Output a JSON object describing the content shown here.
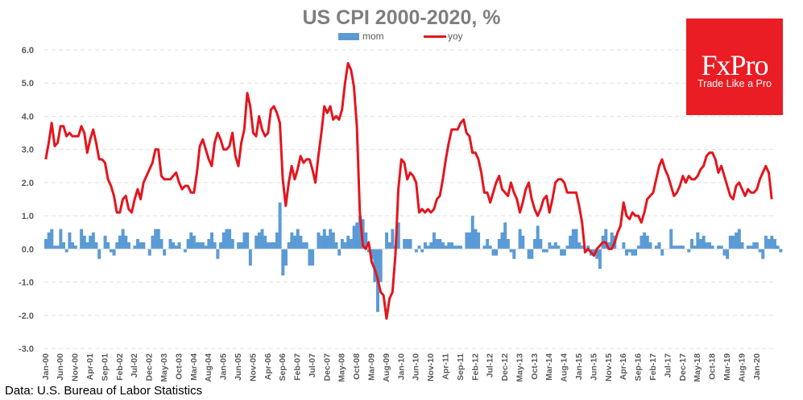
{
  "chart_data": {
    "type": "bar+line",
    "title": "US CPI 2000-2020, %",
    "xlabel": "",
    "ylabel": "",
    "ylim": [
      -3.0,
      6.0
    ],
    "yticks": [
      "6.0",
      "5.0",
      "4.0",
      "3.0",
      "2.0",
      "1.0",
      "0.0",
      "-1.0",
      "-2.0",
      "-3.0"
    ],
    "ytick_values": [
      6,
      5,
      4,
      3,
      2,
      1,
      0,
      -1,
      -2,
      -3
    ],
    "grid": true,
    "legend": "top-center",
    "start": "Jan-00",
    "end": "Mar-20",
    "xtick_every_months": 5,
    "xticks": [
      "Jan-00",
      "Jun-00",
      "Nov-00",
      "Apr-01",
      "Sep-01",
      "Feb-02",
      "Jul-02",
      "Dec-02",
      "May-03",
      "Oct-03",
      "Mar-04",
      "Aug-04",
      "Jan-05",
      "Jun-05",
      "Nov-05",
      "Apr-06",
      "Sep-06",
      "Feb-07",
      "Jul-07",
      "Dec-07",
      "May-08",
      "Oct-08",
      "Mar-09",
      "Aug-09",
      "Jan-10",
      "Jun-10",
      "Nov-10",
      "Apr-11",
      "Sep-11",
      "Feb-12",
      "Jul-12",
      "Dec-12",
      "May-13",
      "Oct-13",
      "Mar-14",
      "Aug-14",
      "Jan-15",
      "Jun-15",
      "Nov-15",
      "Apr-16",
      "Sep-16",
      "Feb-17",
      "Jul-17",
      "Dec-17",
      "May-18",
      "Oct-18",
      "Mar-19",
      "Aug-19",
      "Jan-20"
    ],
    "series": [
      {
        "name": "mom",
        "type": "bar",
        "color": "#5b9bd5",
        "values": [
          0.3,
          0.5,
          0.6,
          0.1,
          0.1,
          0.6,
          0.2,
          -0.1,
          0.5,
          0.2,
          0.1,
          0.0,
          0.6,
          0.4,
          0.2,
          0.4,
          0.5,
          0.2,
          -0.3,
          0.0,
          0.4,
          0.2,
          -0.1,
          -0.2,
          0.2,
          0.4,
          0.6,
          0.4,
          0.2,
          0.0,
          0.1,
          0.3,
          0.2,
          0.2,
          0.0,
          -0.2,
          0.4,
          0.6,
          0.6,
          0.3,
          -0.2,
          0.0,
          0.3,
          0.2,
          0.1,
          0.2,
          0.0,
          -0.1,
          0.3,
          0.5,
          0.4,
          0.2,
          0.2,
          0.2,
          0.1,
          0.3,
          0.5,
          0.2,
          -0.3,
          0.2,
          0.5,
          0.6,
          0.6,
          0.3,
          0.0,
          0.2,
          0.2,
          0.5,
          0.5,
          -0.5,
          0.0,
          0.4,
          0.5,
          0.6,
          0.4,
          0.2,
          0.2,
          0.2,
          0.5,
          1.4,
          -0.8,
          -0.5,
          0.2,
          0.5,
          0.4,
          0.6,
          0.4,
          0.2,
          0.2,
          -0.5,
          -0.5,
          0.0,
          0.5,
          0.4,
          0.6,
          0.4,
          0.6,
          0.5,
          0.2,
          -0.2,
          0.3,
          0.2,
          0.4,
          0.3,
          0.7,
          0.8,
          1.0,
          0.9,
          0.5,
          -0.1,
          -0.3,
          -1.0,
          -1.9,
          -1.0,
          0.0,
          0.5,
          0.2,
          0.6,
          0.1,
          0.8,
          0.0,
          0.3,
          0.3,
          0.3,
          0.0,
          -0.1,
          0.1,
          -0.1,
          0.2,
          0.1,
          0.2,
          0.5,
          0.3,
          0.3,
          0.2,
          0.1,
          0.2,
          0.2,
          0.1,
          0.1,
          0.1,
          0.0,
          0.5,
          0.5,
          1.0,
          0.6,
          0.5,
          0.0,
          0.1,
          0.3,
          0.1,
          -0.2,
          -0.2,
          0.3,
          0.5,
          0.8,
          0.3,
          -0.1,
          -0.3,
          0.0,
          0.6,
          0.4,
          0.0,
          -0.3,
          -0.3,
          0.3,
          0.7,
          0.3,
          -0.1,
          -0.1,
          0.2,
          0.1,
          0.2,
          0.1,
          -0.2,
          -0.2,
          0.1,
          0.4,
          0.6,
          0.6,
          0.2,
          0.1,
          0.0,
          0.1,
          -0.2,
          -0.2,
          -0.3,
          -0.6,
          0.4,
          0.6,
          0.2,
          0.5,
          0.4,
          0.0,
          0.0,
          0.2,
          -0.2,
          -0.1,
          -0.2,
          -0.2,
          0.1,
          0.4,
          0.5,
          0.4,
          0.2,
          0.0,
          0.1,
          0.2,
          -0.2,
          0.0,
          0.0,
          0.6,
          0.1,
          0.1,
          0.1,
          0.1,
          0.0,
          -0.1,
          0.3,
          0.1,
          0.5,
          0.3,
          0.4,
          0.2,
          0.2,
          0.1,
          0.0,
          0.1,
          0.1,
          -0.2,
          -0.3,
          0.4,
          0.4,
          0.5,
          0.6,
          0.2,
          0.0,
          0.1,
          0.1,
          0.2,
          0.2,
          -0.1,
          -0.3,
          0.4,
          0.3,
          0.4,
          0.3,
          0.1,
          -0.1
        ]
      },
      {
        "name": "yoy",
        "type": "line",
        "color": "#e3161e",
        "values": [
          2.7,
          3.2,
          3.8,
          3.1,
          3.2,
          3.7,
          3.7,
          3.4,
          3.5,
          3.4,
          3.4,
          3.4,
          3.7,
          3.5,
          2.9,
          3.3,
          3.6,
          3.2,
          2.7,
          2.7,
          2.6,
          2.1,
          1.9,
          1.6,
          1.1,
          1.1,
          1.5,
          1.6,
          1.2,
          1.1,
          1.5,
          1.8,
          1.5,
          2.0,
          2.2,
          2.4,
          2.6,
          3.0,
          3.0,
          2.2,
          2.1,
          2.1,
          2.1,
          2.2,
          2.3,
          2.0,
          1.8,
          1.9,
          1.9,
          1.7,
          1.7,
          2.3,
          3.1,
          3.3,
          3.0,
          2.7,
          2.5,
          3.2,
          3.5,
          3.3,
          3.0,
          3.0,
          3.1,
          3.5,
          2.8,
          2.5,
          3.2,
          3.6,
          4.7,
          4.3,
          3.5,
          3.4,
          4.0,
          3.6,
          3.4,
          3.5,
          4.2,
          4.3,
          4.1,
          3.8,
          2.1,
          1.3,
          2.0,
          2.5,
          2.1,
          2.4,
          2.8,
          2.6,
          2.7,
          2.7,
          2.4,
          2.0,
          2.8,
          3.5,
          4.3,
          4.1,
          4.3,
          3.9,
          4.0,
          3.9,
          4.2,
          5.0,
          5.6,
          5.4,
          4.9,
          3.7,
          1.1,
          0.1,
          0.0,
          0.2,
          -0.4,
          -0.6,
          -0.9,
          -1.3,
          -1.4,
          -2.1,
          -1.5,
          -1.3,
          -0.2,
          1.8,
          2.7,
          2.6,
          2.1,
          2.3,
          2.2,
          2.0,
          1.1,
          1.2,
          1.1,
          1.2,
          1.1,
          1.2,
          1.5,
          1.6,
          2.1,
          2.7,
          3.2,
          3.6,
          3.6,
          3.6,
          3.8,
          3.9,
          3.5,
          3.4,
          2.9,
          2.9,
          2.7,
          2.3,
          1.7,
          1.7,
          1.4,
          1.7,
          2.0,
          2.2,
          1.8,
          1.7,
          1.6,
          2.0,
          1.7,
          1.5,
          1.1,
          1.4,
          1.8,
          2.0,
          1.5,
          1.2,
          1.0,
          1.2,
          1.5,
          1.6,
          1.1,
          1.5,
          2.0,
          2.1,
          2.1,
          2.0,
          1.7,
          1.7,
          1.7,
          1.7,
          1.3,
          0.8,
          -0.1,
          0.0,
          -0.1,
          -0.2,
          0.0,
          0.1,
          0.2,
          0.2,
          0.0,
          0.0,
          0.2,
          0.5,
          0.7,
          1.4,
          1.0,
          0.9,
          1.1,
          1.0,
          1.0,
          0.8,
          1.1,
          1.5,
          1.6,
          1.7,
          2.1,
          2.5,
          2.7,
          2.4,
          2.2,
          1.9,
          1.6,
          1.7,
          1.9,
          2.2,
          2.0,
          2.2,
          2.1,
          2.1,
          2.2,
          2.4,
          2.5,
          2.8,
          2.9,
          2.9,
          2.7,
          2.3,
          2.5,
          2.2,
          1.9,
          1.6,
          1.5,
          1.9,
          2.0,
          1.8,
          1.6,
          1.8,
          1.7,
          1.7,
          1.8,
          2.1,
          2.3,
          2.5,
          2.3,
          1.5
        ]
      }
    ]
  },
  "legend": {
    "mom_label": "mom",
    "yoy_label": "yoy"
  },
  "logo": {
    "brand": "FxPro",
    "tagline": "Trade Like a Pro",
    "color": "#ea1c24"
  },
  "source": "Data: U.S. Bureau of Labor Statistics"
}
